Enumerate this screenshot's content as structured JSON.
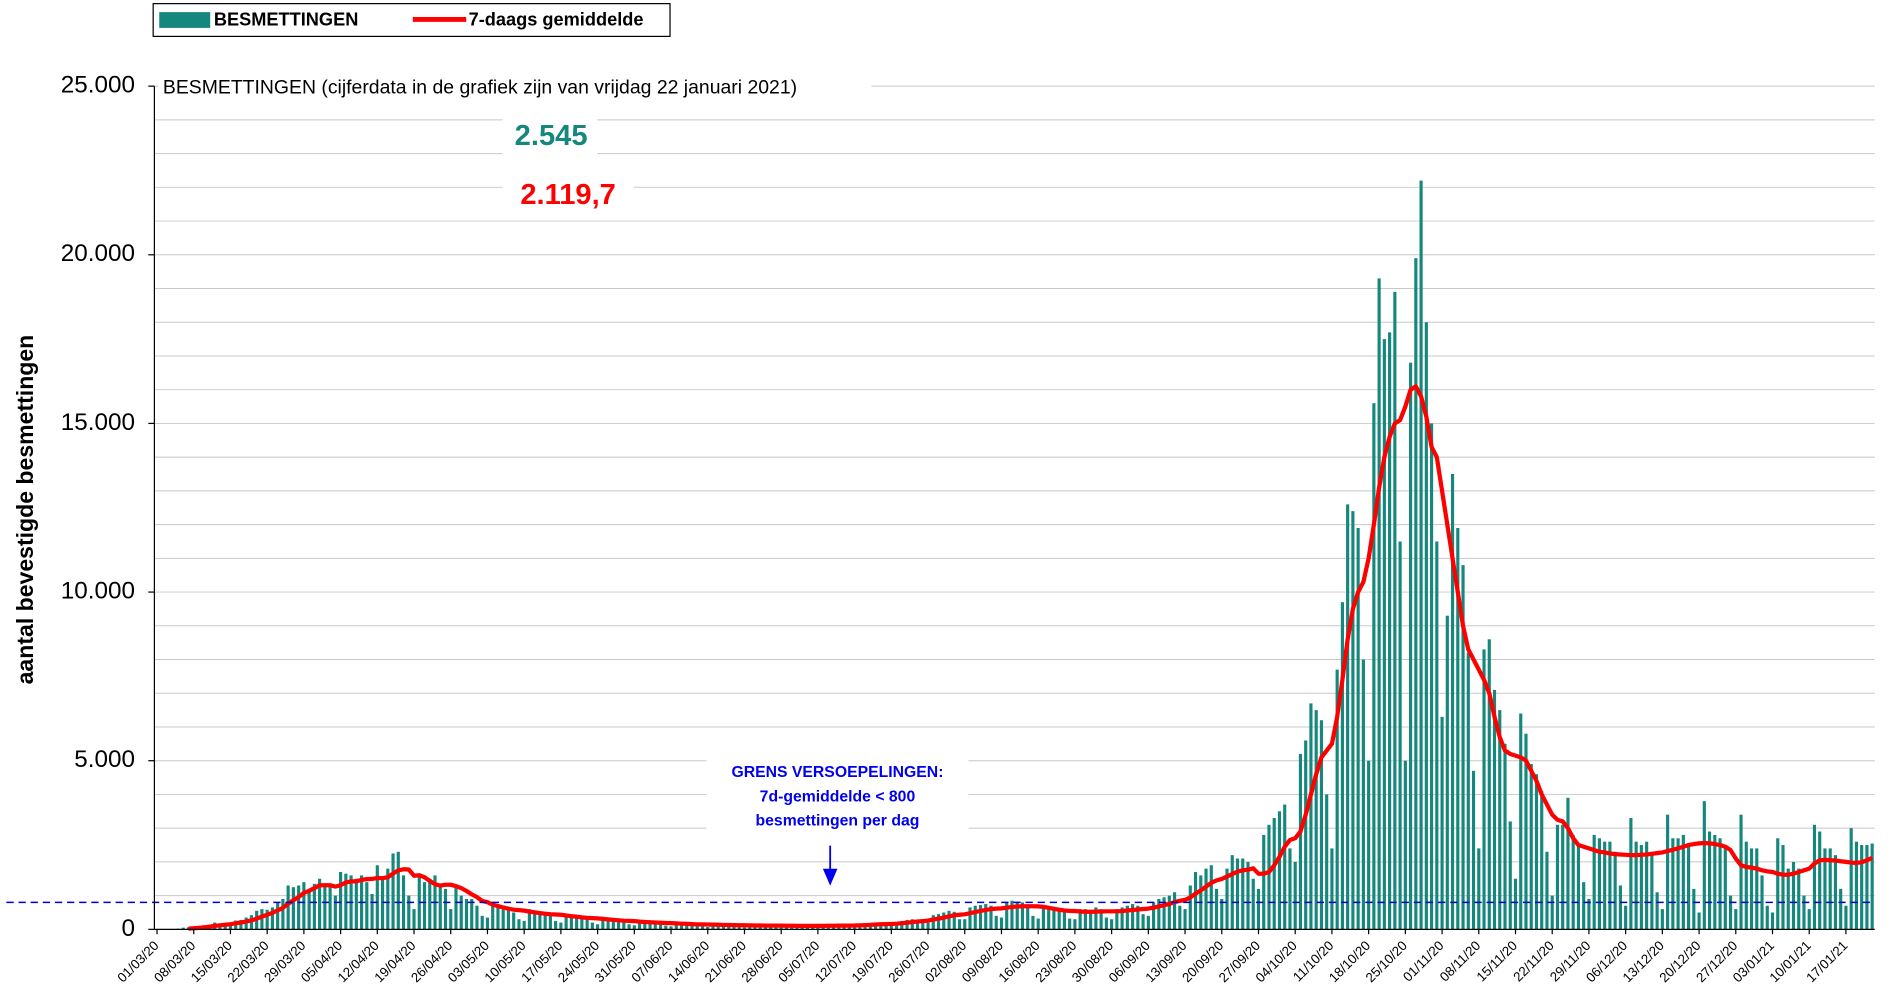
{
  "chart_data": {
    "type": "bar",
    "title": "BESMETTINGEN (cijferdata in de grafiek zijn van vrijdag 22 januari 2021)",
    "y_label": "aantal bevestigde besmettingen",
    "latest": {
      "cases": "2.545",
      "average": "2.119,7"
    },
    "annotation": [
      "GRENS VERSOEPELINGEN:",
      "7d-gemiddelde < 800",
      "besmettingen per dag"
    ],
    "threshold": 800,
    "threshold_color": "#0000cc",
    "ylim": [
      0,
      25000
    ],
    "yticks": [
      {
        "value": 0,
        "label": "0"
      },
      {
        "value": 5000,
        "label": "5.000"
      },
      {
        "value": 10000,
        "label": "10.000"
      },
      {
        "value": 15000,
        "label": "15.000"
      },
      {
        "value": 20000,
        "label": "20.000"
      },
      {
        "value": 25000,
        "label": "25.000"
      }
    ],
    "ygrid": [
      1000,
      2000,
      3000,
      4000,
      5000,
      6000,
      7000,
      8000,
      9000,
      10000,
      11000,
      12000,
      13000,
      14000,
      15000,
      16000,
      17000,
      18000,
      19000,
      20000,
      21000,
      22000,
      23000,
      24000,
      25000
    ],
    "grid": true,
    "legend": "top-left",
    "categories": [
      "01/03/20",
      null,
      null,
      null,
      null,
      null,
      null,
      "08/03/20",
      null,
      null,
      null,
      null,
      null,
      null,
      "15/03/20",
      null,
      null,
      null,
      null,
      null,
      null,
      "22/03/20",
      null,
      null,
      null,
      null,
      null,
      null,
      "29/03/20",
      null,
      null,
      null,
      null,
      null,
      null,
      "05/04/20",
      null,
      null,
      null,
      null,
      null,
      null,
      "12/04/20",
      null,
      null,
      null,
      null,
      null,
      null,
      "19/04/20",
      null,
      null,
      null,
      null,
      null,
      null,
      "26/04/20",
      null,
      null,
      null,
      null,
      null,
      null,
      "03/05/20",
      null,
      null,
      null,
      null,
      null,
      null,
      "10/05/20",
      null,
      null,
      null,
      null,
      null,
      null,
      "17/05/20",
      null,
      null,
      null,
      null,
      null,
      null,
      "24/05/20",
      null,
      null,
      null,
      null,
      null,
      null,
      "31/05/20",
      null,
      null,
      null,
      null,
      null,
      null,
      "07/06/20",
      null,
      null,
      null,
      null,
      null,
      null,
      "14/06/20",
      null,
      null,
      null,
      null,
      null,
      null,
      "21/06/20",
      null,
      null,
      null,
      null,
      null,
      null,
      "28/06/20",
      null,
      null,
      null,
      null,
      null,
      null,
      "05/07/20",
      null,
      null,
      null,
      null,
      null,
      null,
      "12/07/20",
      null,
      null,
      null,
      null,
      null,
      null,
      "19/07/20",
      null,
      null,
      null,
      null,
      null,
      null,
      "26/07/20",
      null,
      null,
      null,
      null,
      null,
      null,
      "02/08/20",
      null,
      null,
      null,
      null,
      null,
      null,
      "09/08/20",
      null,
      null,
      null,
      null,
      null,
      null,
      "16/08/20",
      null,
      null,
      null,
      null,
      null,
      null,
      "23/08/20",
      null,
      null,
      null,
      null,
      null,
      null,
      "30/08/20",
      null,
      null,
      null,
      null,
      null,
      null,
      "06/09/20",
      null,
      null,
      null,
      null,
      null,
      null,
      "13/09/20",
      null,
      null,
      null,
      null,
      null,
      null,
      "20/09/20",
      null,
      null,
      null,
      null,
      null,
      null,
      "27/09/20",
      null,
      null,
      null,
      null,
      null,
      null,
      "04/10/20",
      null,
      null,
      null,
      null,
      null,
      null,
      "11/10/20",
      null,
      null,
      null,
      null,
      null,
      null,
      "18/10/20",
      null,
      null,
      null,
      null,
      null,
      null,
      "25/10/20",
      null,
      null,
      null,
      null,
      null,
      null,
      "01/11/20",
      null,
      null,
      null,
      null,
      null,
      null,
      "08/11/20",
      null,
      null,
      null,
      null,
      null,
      null,
      "15/11/20",
      null,
      null,
      null,
      null,
      null,
      null,
      "22/11/20",
      null,
      null,
      null,
      null,
      null,
      null,
      "29/11/20",
      null,
      null,
      null,
      null,
      null,
      null,
      "06/12/20",
      null,
      null,
      null,
      null,
      null,
      null,
      "13/12/20",
      null,
      null,
      null,
      null,
      null,
      null,
      "20/12/20",
      null,
      null,
      null,
      null,
      null,
      null,
      "27/12/20",
      null,
      null,
      null,
      null,
      null,
      null,
      "03/01/21",
      null,
      null,
      null,
      null,
      null,
      null,
      "10/01/21",
      null,
      null,
      null,
      null,
      null,
      null,
      "17/01/21",
      null,
      null,
      null,
      null,
      null
    ],
    "series": [
      {
        "name": "BESMETTINGEN",
        "type": "bar",
        "color": "#15877c",
        "values": [
          2,
          5,
          8,
          13,
          23,
          50,
          60,
          70,
          80,
          120,
          140,
          200,
          170,
          180,
          190,
          260,
          280,
          350,
          420,
          550,
          600,
          580,
          650,
          800,
          900,
          1300,
          1250,
          1300,
          1400,
          1100,
          1350,
          1500,
          1300,
          1250,
          1000,
          1700,
          1650,
          1600,
          1500,
          1600,
          1400,
          1050,
          1900,
          1500,
          1800,
          2250,
          2300,
          1600,
          1000,
          600,
          1600,
          1400,
          1500,
          1600,
          1300,
          1200,
          600,
          1300,
          1000,
          900,
          900,
          700,
          400,
          350,
          800,
          700,
          600,
          650,
          500,
          300,
          250,
          600,
          550,
          450,
          500,
          400,
          250,
          200,
          450,
          400,
          350,
          350,
          300,
          200,
          150,
          350,
          300,
          250,
          250,
          220,
          150,
          120,
          230,
          220,
          200,
          200,
          170,
          110,
          90,
          170,
          160,
          150,
          150,
          130,
          90,
          70,
          140,
          130,
          120,
          130,
          110,
          80,
          60,
          120,
          110,
          110,
          110,
          100,
          70,
          60,
          110,
          100,
          100,
          110,
          100,
          70,
          60,
          110,
          110,
          110,
          120,
          110,
          80,
          70,
          150,
          150,
          170,
          180,
          160,
          110,
          100,
          220,
          250,
          280,
          300,
          280,
          200,
          200,
          420,
          450,
          500,
          550,
          520,
          300,
          300,
          650,
          700,
          720,
          750,
          700,
          400,
          350,
          800,
          850,
          820,
          800,
          700,
          400,
          320,
          700,
          650,
          620,
          600,
          550,
          320,
          300,
          600,
          600,
          580,
          650,
          600,
          350,
          300,
          600,
          650,
          700,
          750,
          700,
          450,
          400,
          800,
          900,
          950,
          1000,
          1100,
          700,
          600,
          1300,
          1700,
          1600,
          1800,
          1900,
          1200,
          900,
          1800,
          2200,
          2100,
          2100,
          2000,
          1500,
          1200,
          2800,
          3100,
          3300,
          3500,
          3700,
          2400,
          2000,
          5200,
          5600,
          6700,
          6500,
          6200,
          4000,
          2400,
          7700,
          9700,
          12600,
          12400,
          11900,
          8000,
          5000,
          15600,
          19300,
          17500,
          17700,
          18900,
          11500,
          5000,
          16800,
          19900,
          22200,
          18000,
          15000,
          11500,
          6300,
          9300,
          13500,
          11900,
          10800,
          8200,
          4700,
          2400,
          8300,
          8600,
          7100,
          6500,
          5500,
          3200,
          1500,
          6400,
          5800,
          4900,
          4600,
          4100,
          2300,
          1000,
          3100,
          3100,
          3900,
          2800,
          2500,
          1400,
          900,
          2800,
          2700,
          2600,
          2600,
          2300,
          1300,
          700,
          3300,
          2600,
          2500,
          2600,
          2300,
          1100,
          600,
          3400,
          2700,
          2700,
          2800,
          2500,
          1200,
          500,
          3800,
          2900,
          2800,
          2700,
          2500,
          1000,
          600,
          3400,
          2600,
          2400,
          2400,
          1600,
          700,
          500,
          2700,
          2500,
          1800,
          2000,
          1800,
          1000,
          600,
          3100,
          2900,
          2400,
          2400,
          2200,
          1200,
          700,
          3000,
          2600,
          2500,
          2500,
          2545
        ]
      },
      {
        "name": "7-daags gemiddelde",
        "type": "line",
        "color": "#ff0000",
        "values": [
          null,
          null,
          null,
          null,
          null,
          null,
          23,
          32,
          43,
          59,
          77,
          103,
          120,
          137,
          153,
          179,
          202,
          231,
          263,
          317,
          377,
          433,
          489,
          563,
          636,
          762,
          862,
          962,
          1079,
          1143,
          1222,
          1308,
          1309,
          1309,
          1267,
          1310,
          1389,
          1424,
          1424,
          1467,
          1488,
          1495,
          1524,
          1517,
          1546,
          1653,
          1753,
          1781,
          1774,
          1589,
          1604,
          1546,
          1439,
          1339,
          1296,
          1324,
          1324,
          1281,
          1224,
          1139,
          1039,
          954,
          841,
          805,
          733,
          690,
          648,
          612,
          583,
          569,
          555,
          526,
          504,
          483,
          462,
          448,
          440,
          433,
          412,
          390,
          376,
          355,
          340,
          333,
          325,
          311,
          296,
          282,
          268,
          257,
          250,
          245,
          228,
          217,
          209,
          202,
          195,
          189,
          185,
          177,
          168,
          161,
          154,
          149,
          146,
          143,
          139,
          135,
          131,
          128,
          125,
          123,
          121,
          118,
          115,
          114,
          111,
          110,
          109,
          109,
          107,
          106,
          104,
          104,
          104,
          104,
          104,
          104,
          105,
          107,
          109,
          110,
          111,
          113,
          119,
          125,
          134,
          143,
          150,
          154,
          158,
          168,
          182,
          198,
          215,
          232,
          245,
          260,
          289,
          317,
          348,
          384,
          418,
          432,
          446,
          479,
          514,
          546,
          575,
          601,
          615,
          622,
          643,
          664,
          678,
          685,
          685,
          685,
          681,
          667,
          638,
          609,
          581,
          559,
          547,
          544,
          530,
          523,
          517,
          524,
          531,
          535,
          535,
          535,
          542,
          559,
          573,
          588,
          602,
          616,
          644,
          680,
          716,
          752,
          809,
          845,
          874,
          946,
          1060,
          1153,
          1267,
          1381,
          1452,
          1495,
          1566,
          1638,
          1710,
          1752,
          1767,
          1810,
          1650,
          1650,
          1700,
          1900,
          2150,
          2450,
          2650,
          2700,
          2900,
          3400,
          4000,
          4600,
          5100,
          5300,
          5500,
          6300,
          7400,
          8600,
          9500,
          10000,
          10300,
          11000,
          12000,
          13100,
          14000,
          14600,
          15000,
          15100,
          15500,
          16000,
          16100,
          15800,
          15200,
          14300,
          14000,
          13000,
          12000,
          11000,
          10000,
          9000,
          8300,
          8000,
          7700,
          7400,
          7000,
          6300,
          5700,
          5300,
          5200,
          5150,
          5100,
          5000,
          4700,
          4400,
          4000,
          3700,
          3400,
          3250,
          3200,
          3000,
          2700,
          2500,
          2450,
          2400,
          2350,
          2300,
          2280,
          2250,
          2230,
          2220,
          2210,
          2200,
          2200,
          2210,
          2220,
          2240,
          2260,
          2280,
          2320,
          2360,
          2400,
          2450,
          2500,
          2530,
          2550,
          2560,
          2550,
          2530,
          2500,
          2450,
          2350,
          2100,
          1900,
          1850,
          1830,
          1800,
          1750,
          1720,
          1700,
          1650,
          1620,
          1620,
          1650,
          1700,
          1750,
          1800,
          1950,
          2050,
          2060,
          2050,
          2040,
          2020,
          2000,
          1980,
          1970,
          1990,
          2050,
          2119.7
        ]
      }
    ]
  }
}
